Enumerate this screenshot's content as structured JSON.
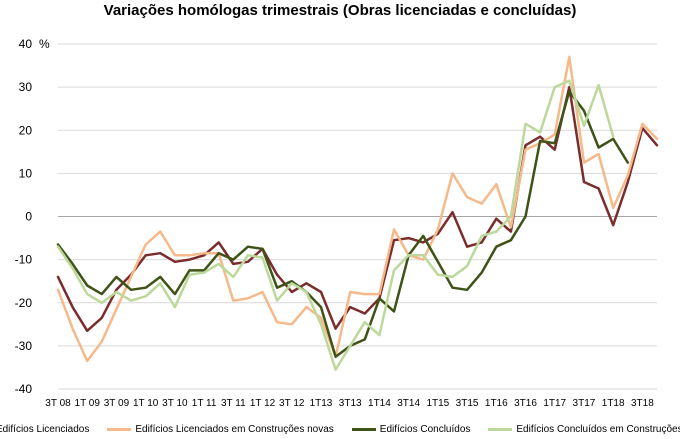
{
  "chart_data": {
    "type": "line",
    "title": "Variações homólogas trimestrais (Obras licenciadas e concluídas)",
    "ylabel": "%",
    "xlabel": "",
    "ylim": [
      -40,
      40
    ],
    "yticks": [
      -40,
      -30,
      -20,
      -10,
      0,
      10,
      20,
      30,
      40
    ],
    "grid": true,
    "legend_position": "bottom",
    "x_labels": [
      "3T 08",
      "1T 09",
      "3T 09",
      "1T 10",
      "3T 10",
      "1T 11",
      "3T 11",
      "1T 12",
      "3T 12",
      "1T13",
      "3T13",
      "1T14",
      "3T14",
      "1T15",
      "3T15",
      "1T16",
      "3T16",
      "1T17",
      "3T17",
      "1T18",
      "3T18"
    ],
    "series": [
      {
        "name": "Edifícios Licenciados",
        "color": "#7b2c2c",
        "values": [
          -14,
          -21,
          -26.5,
          -23.5,
          -17,
          -13.5,
          -9,
          -8.5,
          -10.5,
          -10,
          -9,
          -6,
          -11,
          -10.5,
          -7.5,
          -13.5,
          -17.5,
          -15.5,
          -17.5,
          -26,
          -21,
          -22.5,
          -19,
          -5.5,
          -5,
          -6,
          -4,
          1,
          -7,
          -6,
          -0.5,
          -3.5,
          16.5,
          18.5,
          15.5,
          30,
          8,
          6.5,
          -2,
          8,
          20.5,
          16.5
        ]
      },
      {
        "name": "Edifícios Licenciados em Construções novas",
        "color": "#f5b98a",
        "values": [
          -17,
          -26,
          -33.5,
          -29,
          -21.5,
          -14,
          -6.5,
          -3.5,
          -9,
          -9,
          -8.5,
          -8.5,
          -19.5,
          -19,
          -17.5,
          -24.5,
          -25,
          -21,
          -23.5,
          -32.5,
          -17.5,
          -18,
          -18,
          -3,
          -9,
          -10,
          -3,
          10,
          4.5,
          3,
          7.5,
          -2.5,
          15.5,
          17,
          19,
          37,
          12.5,
          14.5,
          2,
          9.5,
          21.5,
          18
        ]
      },
      {
        "name": "Edifícios Concluídos",
        "color": "#3f5217",
        "values": [
          -6.5,
          -11,
          -16,
          -18,
          -14,
          -17,
          -16.5,
          -14,
          -18,
          -12.5,
          -12.5,
          -8.5,
          -10,
          -7,
          -7.5,
          -16.5,
          -15,
          -17.5,
          -21,
          -32.5,
          -30,
          -28.5,
          -19,
          -22,
          -9,
          -4.5,
          -10.5,
          -16.5,
          -17,
          -13,
          -7,
          -5.5,
          0,
          17.5,
          17,
          29,
          24.5,
          16,
          18,
          12.5
        ]
      },
      {
        "name": "Edifícios Concluídos em Construções novas",
        "color": "#bcd89a",
        "values": [
          -7,
          -12,
          -18,
          -20,
          -17.5,
          -19.5,
          -18.5,
          -15.5,
          -21,
          -13.5,
          -13,
          -11,
          -14,
          -9,
          -9.5,
          -19.5,
          -15.5,
          -17.5,
          -25,
          -35.5,
          -30,
          -24.5,
          -27.5,
          -12.5,
          -9,
          -9,
          -13.5,
          -14,
          -11.5,
          -4.5,
          -3.5,
          0,
          21.5,
          19.5,
          30,
          31.5,
          21,
          30.5,
          18.5
        ]
      }
    ]
  }
}
